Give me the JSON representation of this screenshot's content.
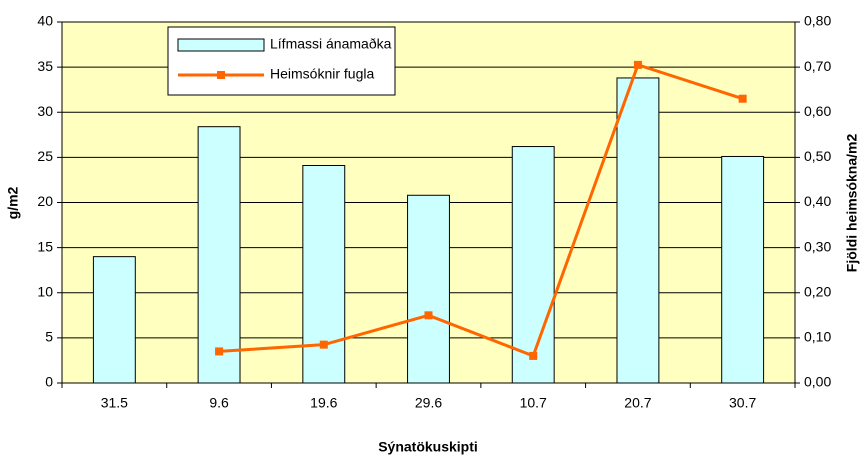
{
  "chart_data": {
    "type": "bar",
    "x_label": "Sýnatökuskipti",
    "y_label": "g/m2",
    "y2_label": "Fjöldi heimsókna/m2",
    "categories": [
      "31.5",
      "9.6",
      "19.6",
      "29.6",
      "10.7",
      "20.7",
      "30.7"
    ],
    "series": [
      {
        "name": "Lífmassi ánamaðka",
        "type": "bar",
        "color": "#ccffff",
        "values": [
          14,
          28.4,
          24.1,
          20.8,
          26.2,
          33.8,
          25.1
        ]
      },
      {
        "name": "Heimsóknir fugla",
        "type": "line",
        "axis": "y2",
        "color": "#ff6600",
        "values": [
          null,
          0.07,
          0.085,
          0.15,
          0.06,
          0.705,
          0.63
        ]
      }
    ],
    "ylim": [
      0,
      40
    ],
    "yticks": [
      0,
      5,
      10,
      15,
      20,
      25,
      30,
      35,
      40
    ],
    "y2lim": [
      0,
      0.8
    ],
    "y2ticks": [
      {
        "value": 0,
        "label": "0,00"
      },
      {
        "value": 0.1,
        "label": "0,10"
      },
      {
        "value": 0.2,
        "label": "0,20"
      },
      {
        "value": 0.3,
        "label": "0,30"
      },
      {
        "value": 0.4,
        "label": "0,40"
      },
      {
        "value": 0.5,
        "label": "0,50"
      },
      {
        "value": 0.6,
        "label": "0,60"
      },
      {
        "value": 0.7,
        "label": "0,70"
      },
      {
        "value": 0.8,
        "label": "0,80"
      }
    ],
    "grid": true,
    "background": "#ffffc0",
    "legend": "upper left"
  }
}
